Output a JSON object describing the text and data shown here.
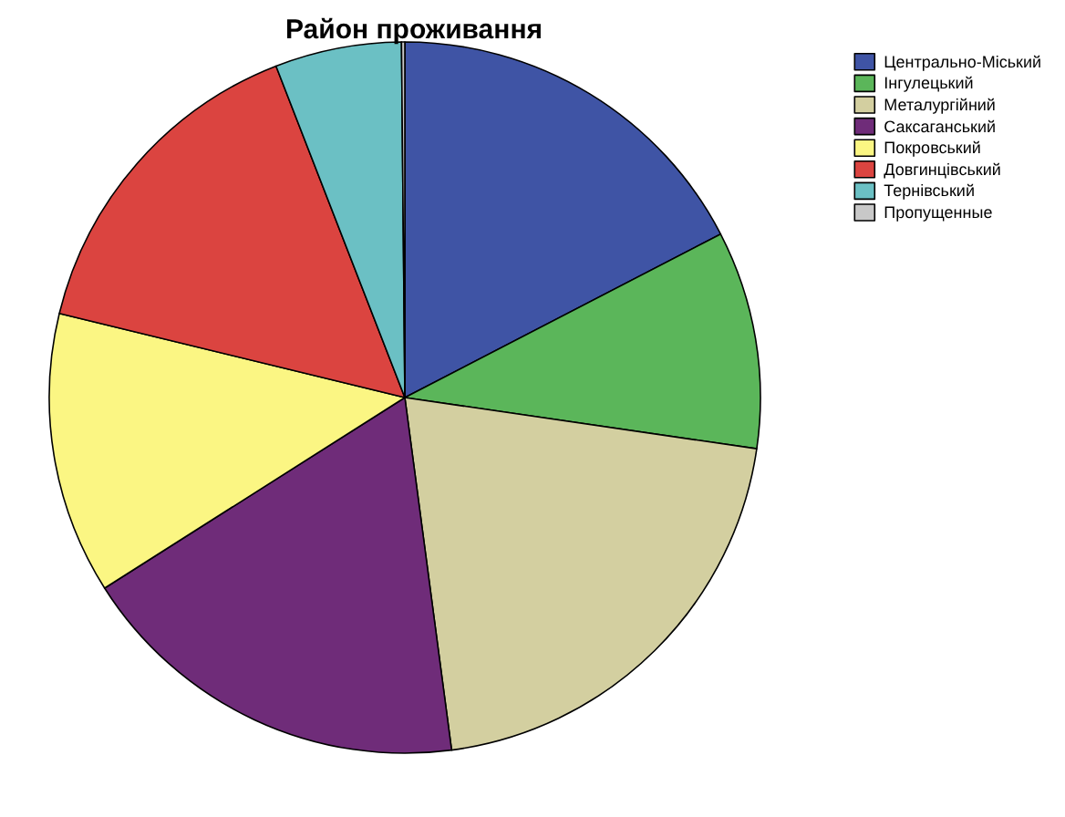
{
  "chart_data": {
    "type": "pie",
    "title": "Район проживання",
    "categories": [
      "Центрально-Міський",
      "Інгулецький",
      "Металургійний",
      "Саксаганський",
      "Покровський",
      "Довгинцівський",
      "Тернівський",
      "Пропущенные"
    ],
    "values": [
      17.4,
      9.9,
      20.6,
      18.1,
      12.8,
      15.3,
      5.75,
      0.15
    ],
    "colors": [
      "#3f54a5",
      "#5bb65a",
      "#d3cfa0",
      "#6f2c79",
      "#fbf683",
      "#db4440",
      "#6bc0c4",
      "#c8c8c8"
    ],
    "legend": "top right"
  }
}
